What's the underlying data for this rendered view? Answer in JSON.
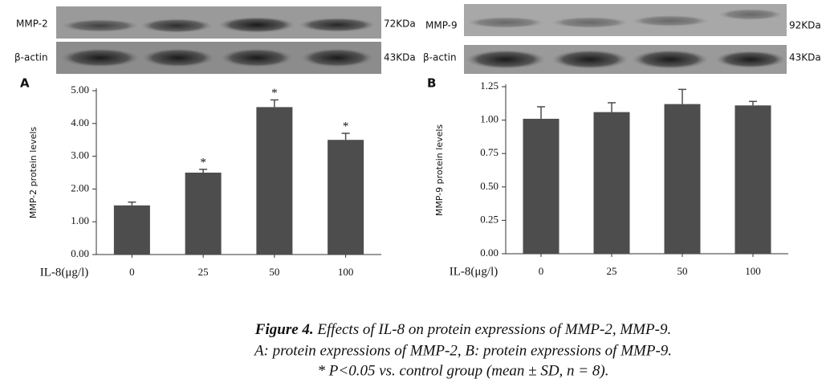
{
  "chart_data": [
    {
      "type": "bar",
      "panel": "A",
      "ylabel": "MMP-2 protein levels",
      "xlabel": "IL-8(μg/l)",
      "categories": [
        "0",
        "25",
        "50",
        "100"
      ],
      "values": [
        1.5,
        2.5,
        4.5,
        3.5
      ],
      "errors": [
        0.1,
        0.1,
        0.22,
        0.2
      ],
      "significance": [
        null,
        "*",
        "*",
        "*"
      ],
      "color": "#4d4d4d",
      "ylim": [
        0,
        5
      ],
      "yticks": [
        {
          "value": 0,
          "label": "0.00"
        },
        {
          "value": 1,
          "label": "1.00"
        },
        {
          "value": 2,
          "label": "2.00"
        },
        {
          "value": 3,
          "label": "3.00"
        },
        {
          "value": 4,
          "label": "4.00"
        },
        {
          "value": 5,
          "label": "5.00"
        }
      ]
    },
    {
      "type": "bar",
      "panel": "B",
      "ylabel": "MMP-9 protein levels",
      "xlabel": "IL-8(μg/l)",
      "categories": [
        "0",
        "25",
        "50",
        "100"
      ],
      "values": [
        1.01,
        1.06,
        1.12,
        1.11
      ],
      "errors": [
        0.09,
        0.07,
        0.11,
        0.03
      ],
      "significance": [
        null,
        null,
        null,
        null
      ],
      "color": "#4d4d4d",
      "ylim": [
        0,
        1.25
      ],
      "yticks": [
        {
          "value": 0,
          "label": "0.00"
        },
        {
          "value": 0.25,
          "label": "0.25"
        },
        {
          "value": 0.5,
          "label": "0.50"
        },
        {
          "value": 0.75,
          "label": "0.75"
        },
        {
          "value": 1,
          "label": "1.00"
        },
        {
          "value": 1.25,
          "label": "1.25"
        }
      ]
    }
  ],
  "blots": [
    {
      "target": "MMP-2",
      "target_size": "72KDa",
      "control": "β-actin",
      "control_size": "43KDa"
    },
    {
      "target": "MMP-9",
      "target_size": "92KDa",
      "control": "β-actin",
      "control_size": "43KDa"
    }
  ],
  "caption": {
    "figure_label": "Figure 4.",
    "lines": [
      "Effects of IL-8 on protein expressions of MMP-2, MMP-9.",
      "A: protein expressions of MMP-2, B: protein expressions of MMP-9.",
      "* P<0.05 vs. control group (mean ± SD, n = 8)."
    ]
  }
}
